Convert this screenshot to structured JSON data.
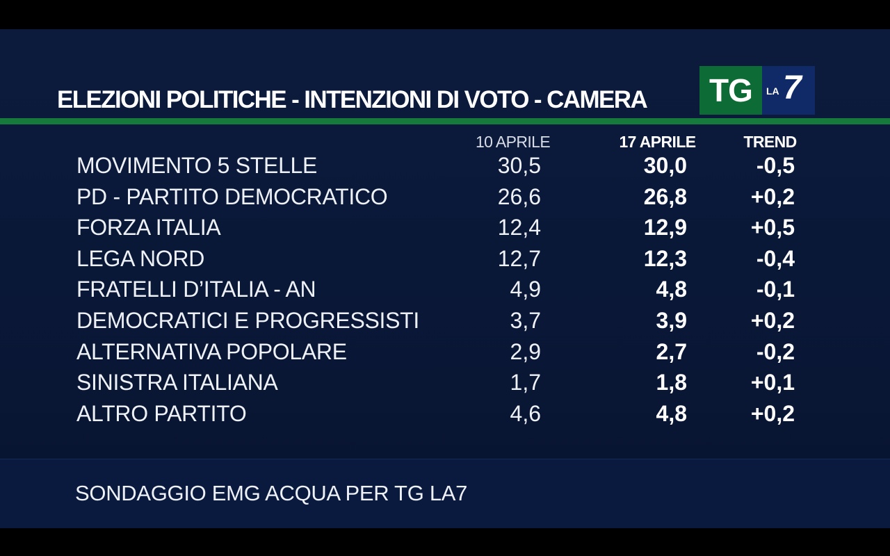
{
  "header": {
    "title": "ELEZIONI POLITICHE - INTENZIONI DI VOTO - CAMERA"
  },
  "logo": {
    "tg": "TG",
    "la": "LA",
    "seven": "7"
  },
  "colors": {
    "background": "#0a1838",
    "accent_green": "#157a3c",
    "logo_green": "#0d6b35",
    "logo_blue": "#0f2a66",
    "text": "#ffffff"
  },
  "chart_data": {
    "type": "table",
    "columns": [
      "10 APRILE",
      "17 APRILE",
      "TREND"
    ],
    "rows": [
      {
        "party": "MOVIMENTO 5 STELLE",
        "v1": "30,5",
        "v2": "30,0",
        "trend": "-0,5"
      },
      {
        "party": "PD - PARTITO DEMOCRATICO",
        "v1": "26,6",
        "v2": "26,8",
        "trend": "+0,2"
      },
      {
        "party": "FORZA ITALIA",
        "v1": "12,4",
        "v2": "12,9",
        "trend": "+0,5"
      },
      {
        "party": "LEGA NORD",
        "v1": "12,7",
        "v2": "12,3",
        "trend": "-0,4"
      },
      {
        "party": "FRATELLI D’ITALIA - AN",
        "v1": "4,9",
        "v2": "4,8",
        "trend": "-0,1"
      },
      {
        "party": "DEMOCRATICI E PROGRESSISTI",
        "v1": "3,7",
        "v2": "3,9",
        "trend": "+0,2"
      },
      {
        "party": "ALTERNATIVA POPOLARE",
        "v1": "2,9",
        "v2": "2,7",
        "trend": "-0,2"
      },
      {
        "party": "SINISTRA ITALIANA",
        "v1": "1,7",
        "v2": "1,8",
        "trend": "+0,1"
      },
      {
        "party": "ALTRO PARTITO",
        "v1": "4,6",
        "v2": "4,8",
        "trend": "+0,2"
      }
    ]
  },
  "footer": {
    "source": "SONDAGGIO EMG ACQUA PER TG LA7"
  }
}
